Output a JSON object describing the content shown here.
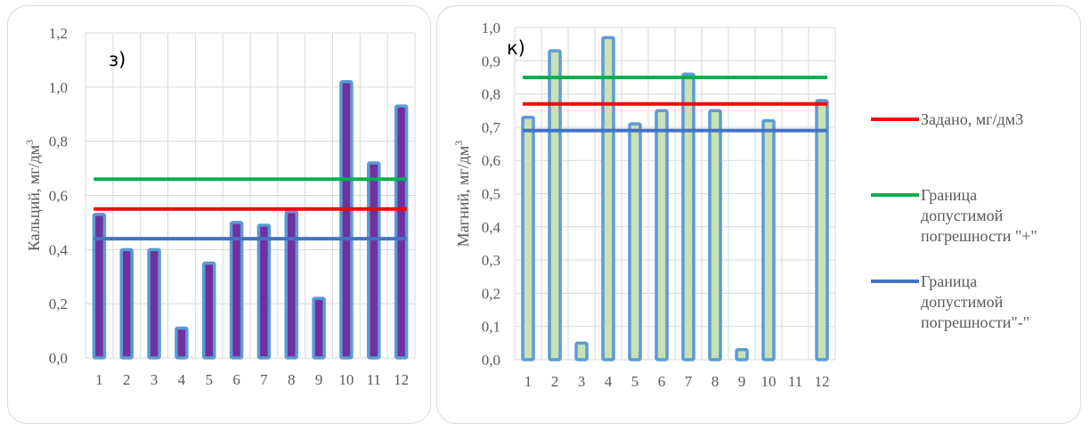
{
  "chart_data": [
    {
      "type": "bar",
      "panel_label": "з)",
      "ylabel": "Кальций, мг/дм3",
      "ylim": [
        0,
        1.2
      ],
      "yticks": [
        0,
        0.2,
        0.4,
        0.6,
        0.8,
        1.0,
        1.2
      ],
      "ytick_labels": [
        "0,0",
        "0,2",
        "0,4",
        "0,6",
        "0,8",
        "1,0",
        "1,2"
      ],
      "categories": [
        "1",
        "2",
        "3",
        "4",
        "5",
        "6",
        "7",
        "8",
        "9",
        "10",
        "11",
        "12"
      ],
      "values": [
        0.53,
        0.4,
        0.4,
        0.11,
        0.35,
        0.5,
        0.49,
        0.54,
        0.22,
        1.02,
        0.72,
        0.93
      ],
      "bar_fill": "#7030a0",
      "bar_edge": "#5b9bd5",
      "grid": true,
      "reference_lines": [
        {
          "name": "Задано, мг/дм3",
          "value": 0.55,
          "color": "#ff0000"
        },
        {
          "name": "Граница допустимой погрешности \"+\"",
          "value": 0.66,
          "color": "#00b050"
        },
        {
          "name": "Граница допустимой погрешности\"-\"",
          "value": 0.44,
          "color": "#4472c4"
        }
      ]
    },
    {
      "type": "bar",
      "panel_label": "к)",
      "ylabel": "Магний, мг/дм3",
      "ylim": [
        0,
        1.0
      ],
      "yticks": [
        0,
        0.1,
        0.2,
        0.3,
        0.4,
        0.5,
        0.6,
        0.7,
        0.8,
        0.9,
        1.0
      ],
      "ytick_labels": [
        "0,0",
        "0,1",
        "0,2",
        "0,3",
        "0,4",
        "0,5",
        "0,6",
        "0,7",
        "0,8",
        "0,9",
        "1,0"
      ],
      "categories": [
        "1",
        "2",
        "3",
        "4",
        "5",
        "6",
        "7",
        "8",
        "9",
        "10",
        "11",
        "12"
      ],
      "values": [
        0.73,
        0.93,
        0.05,
        0.97,
        0.71,
        0.75,
        0.86,
        0.75,
        0.03,
        0.72,
        0,
        0.78
      ],
      "bar_fill": "#c9e2b3",
      "bar_edge": "#5b9bd5",
      "grid": true,
      "legend_placement": "right",
      "reference_lines": [
        {
          "name": "Задано, мг/дм3",
          "value": 0.77,
          "color": "#ff0000"
        },
        {
          "name": "Граница допустимой погрешности \"+\"",
          "value": 0.85,
          "color": "#00b050"
        },
        {
          "name": "Граница допустимой погрешности\"-\"",
          "value": 0.69,
          "color": "#4472c4"
        }
      ]
    }
  ],
  "legend": {
    "items": [
      {
        "lines": [
          "Задано, мг/дм3"
        ],
        "color": "#ff0000"
      },
      {
        "lines": [
          "Граница",
          "допустимой",
          "погрешности \"+\""
        ],
        "color": "#00b050"
      },
      {
        "lines": [
          "Граница",
          "допустимой",
          "погрешности\"-\""
        ],
        "color": "#4472c4"
      }
    ]
  }
}
